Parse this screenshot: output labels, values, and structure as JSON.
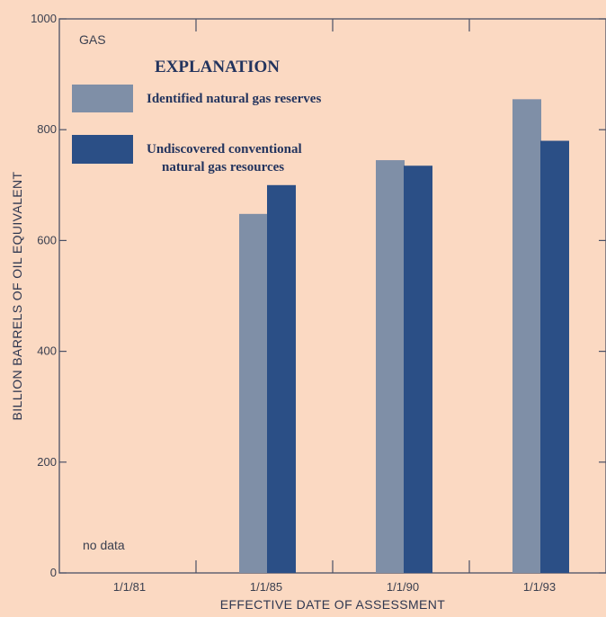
{
  "chart_data": {
    "type": "bar",
    "panel_label": "GAS",
    "legend_title": "EXPLANATION",
    "categories": [
      "1/1/81",
      "1/1/85",
      "1/1/90",
      "1/1/93"
    ],
    "series": [
      {
        "name": "Identified natural gas reserves",
        "color": "#7f8fa7",
        "values": [
          null,
          648,
          745,
          855
        ]
      },
      {
        "name": "Undiscovered conventional natural gas resources",
        "color": "#2b4f86",
        "values": [
          null,
          700,
          735,
          780
        ]
      }
    ],
    "legend_lines": [
      [
        "Identified natural gas reserves"
      ],
      [
        "Undiscovered conventional",
        "natural gas resources"
      ]
    ],
    "annotation": "no data",
    "xlabel": "EFFECTIVE DATE OF ASSESSMENT",
    "ylabel": "BILLION BARRELS OF OIL EQUIVALENT",
    "ylim": [
      0,
      1000
    ],
    "yticks": [
      0,
      200,
      400,
      600,
      800,
      1000
    ],
    "grid": false,
    "legend_position": "top-left"
  }
}
